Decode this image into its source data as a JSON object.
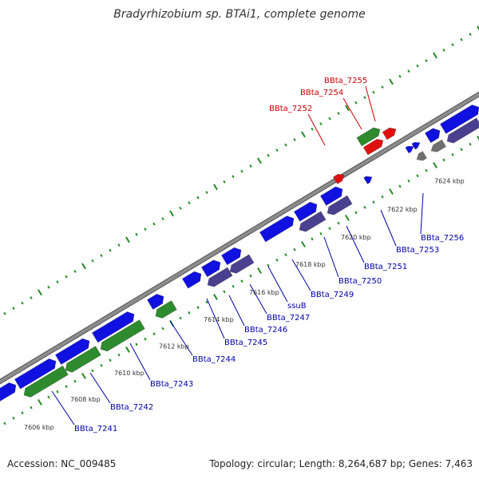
{
  "title": "Bradyrhizobium sp. BTAi1, complete genome",
  "footer": {
    "accession": "Accession: NC_009485",
    "summary": "Topology: circular; Length: 8,264,687 bp; Genes: 7,463"
  },
  "colors": {
    "forward_cds": "#1010e0",
    "reverse_cds": "#4b3f8f",
    "rna_green": "#2e8b2e",
    "red_feature": "#e01010",
    "grey_feature": "#707070",
    "backbone": "#8c8c8c",
    "tick_green": "#228b22",
    "label_blue": "#0000aa",
    "label_red": "#cc0000"
  },
  "ruler_labels": [
    "7606 kbp",
    "7608 kbp",
    "7610 kbp",
    "7612 kbp",
    "7614 kbp",
    "7616 kbp",
    "7618 kbp",
    "7620 kbp",
    "7622 kbp",
    "7624 kbp"
  ],
  "gene_labels_below": [
    "BBta_7241",
    "BBta_7242",
    "BBta_7243",
    "BBta_7244",
    "BBta_7245",
    "BBta_7246",
    "BBta_7247",
    "ssuB",
    "BBta_7249",
    "BBta_7250",
    "BBta_7251",
    "BBta_7253",
    "BBta_7256"
  ],
  "gene_labels_above": [
    "BBta_7252",
    "BBta_7254",
    "BBta_7255"
  ]
}
